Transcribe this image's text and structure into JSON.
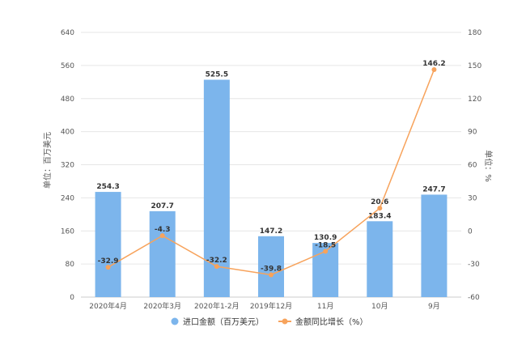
{
  "chart_data": {
    "type": "bar",
    "categories": [
      "2020年4月",
      "2020年3月",
      "2020年1-2月",
      "2019年12月",
      "11月",
      "10月",
      "9月"
    ],
    "series": [
      {
        "name": "进口金额（百万美元）",
        "type": "bar",
        "axis": "left",
        "values": [
          254.3,
          207.7,
          525.5,
          147.2,
          130.9,
          183.4,
          247.7
        ]
      },
      {
        "name": "金额同比增长（%）",
        "type": "line",
        "axis": "right",
        "values": [
          -32.9,
          -4.3,
          -32.2,
          -39.8,
          -18.5,
          20.6,
          146.2
        ]
      }
    ],
    "ylabel": "单位：百万美元",
    "y2label": "单位：%",
    "ylim": [
      0,
      640
    ],
    "y2lim": [
      -60,
      180
    ],
    "yticks": [
      0,
      80,
      160,
      240,
      320,
      400,
      480,
      560,
      640
    ],
    "y2ticks": [
      -60,
      -30,
      0,
      30,
      60,
      90,
      120,
      150,
      180
    ],
    "grid": true,
    "legend_position": "bottom"
  },
  "colors": {
    "bar": "#7cb5ec",
    "line": "#f7a35c",
    "grid": "#e6e6e6",
    "axis": "#cccccc"
  }
}
